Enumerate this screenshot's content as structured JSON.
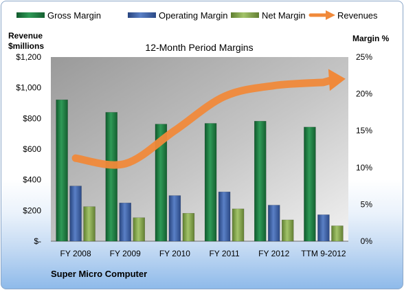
{
  "chart_data": {
    "type": "bar",
    "title": "12-Month Period Margins",
    "left_axis_label_line1": "Revenue",
    "left_axis_label_line2": "$millions",
    "right_axis_label": "Margin %",
    "categories": [
      "FY 2008",
      "FY 2009",
      "FY 2010",
      "FY 2011",
      "FY 2012",
      "TTM 9-2012"
    ],
    "left_ticks": [
      "$-",
      "$200",
      "$400",
      "$600",
      "$800",
      "$1,000",
      "$1,200"
    ],
    "right_ticks": [
      "0%",
      "5%",
      "10%",
      "15%",
      "20%",
      "25%"
    ],
    "ylim_left": [
      0,
      1200
    ],
    "ylim_right": [
      0,
      25
    ],
    "series": [
      {
        "name": "Gross Margin",
        "axis": "right",
        "type": "bar",
        "color": "#1f7d42",
        "values": [
          19.2,
          17.5,
          15.9,
          16.0,
          16.3,
          15.5
        ]
      },
      {
        "name": "Operating Margin",
        "axis": "right",
        "type": "bar",
        "color": "#3f63a8",
        "values": [
          7.5,
          5.2,
          6.2,
          6.7,
          4.9,
          3.6
        ]
      },
      {
        "name": "Net Margin",
        "axis": "right",
        "type": "bar",
        "color": "#86a84e",
        "values": [
          4.7,
          3.2,
          3.8,
          4.4,
          2.9,
          2.1
        ]
      },
      {
        "name": "Revenues",
        "axis": "left",
        "type": "line",
        "color": "#f0893a",
        "values": [
          541,
          505,
          721,
          943,
          1014,
          1035
        ]
      }
    ],
    "grid": false,
    "legend_position": "top"
  },
  "company": "Super Micro Computer"
}
